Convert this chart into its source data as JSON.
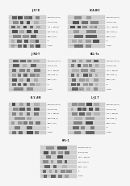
{
  "panels": [
    {
      "title": "J-17 B",
      "col": 0,
      "row": 0
    },
    {
      "title": "SCA-BCI",
      "col": 1,
      "row": 0
    },
    {
      "title": "JI-RO-T",
      "col": 0,
      "row": 1
    },
    {
      "title": "KCL-7a",
      "col": 1,
      "row": 1
    },
    {
      "title": "B.Y. AM",
      "col": 0,
      "row": 2
    },
    {
      "title": "L-J1 T",
      "col": 1,
      "row": 2
    },
    {
      "title": "KPL-1",
      "col": 0,
      "row": 3,
      "centered": true
    }
  ],
  "band_labels_long": [
    "pPRAS40 (T246)",
    "pAKT (S473)",
    "Akt 1 - Pan/Akt",
    "PPKA-ZRK (S)",
    "EBK+ (T+L)",
    "PP",
    "GAPDH"
  ],
  "band_labels_short": [
    "pPRAS40 (T)",
    "pAKT (TPR)",
    "Akt 1 1 (T, L)",
    "pPKA-ZRK (S,)",
    "RPKV (T+L)",
    "PP",
    "GAPDH"
  ],
  "n_bands": 7,
  "n_cols": 2,
  "n_rows": 4,
  "bg_color": "#f0f0f0",
  "panel_bg": "#ffffff",
  "band_colors_dark": [
    "#555555",
    "#333333",
    "#444444",
    "#666666",
    "#555555",
    "#777777",
    "#444444"
  ],
  "band_colors_light": [
    "#aaaaaa",
    "#888888",
    "#999999",
    "#bbbbbb",
    "#aaaaaa",
    "#cccccc",
    "#999999"
  ]
}
